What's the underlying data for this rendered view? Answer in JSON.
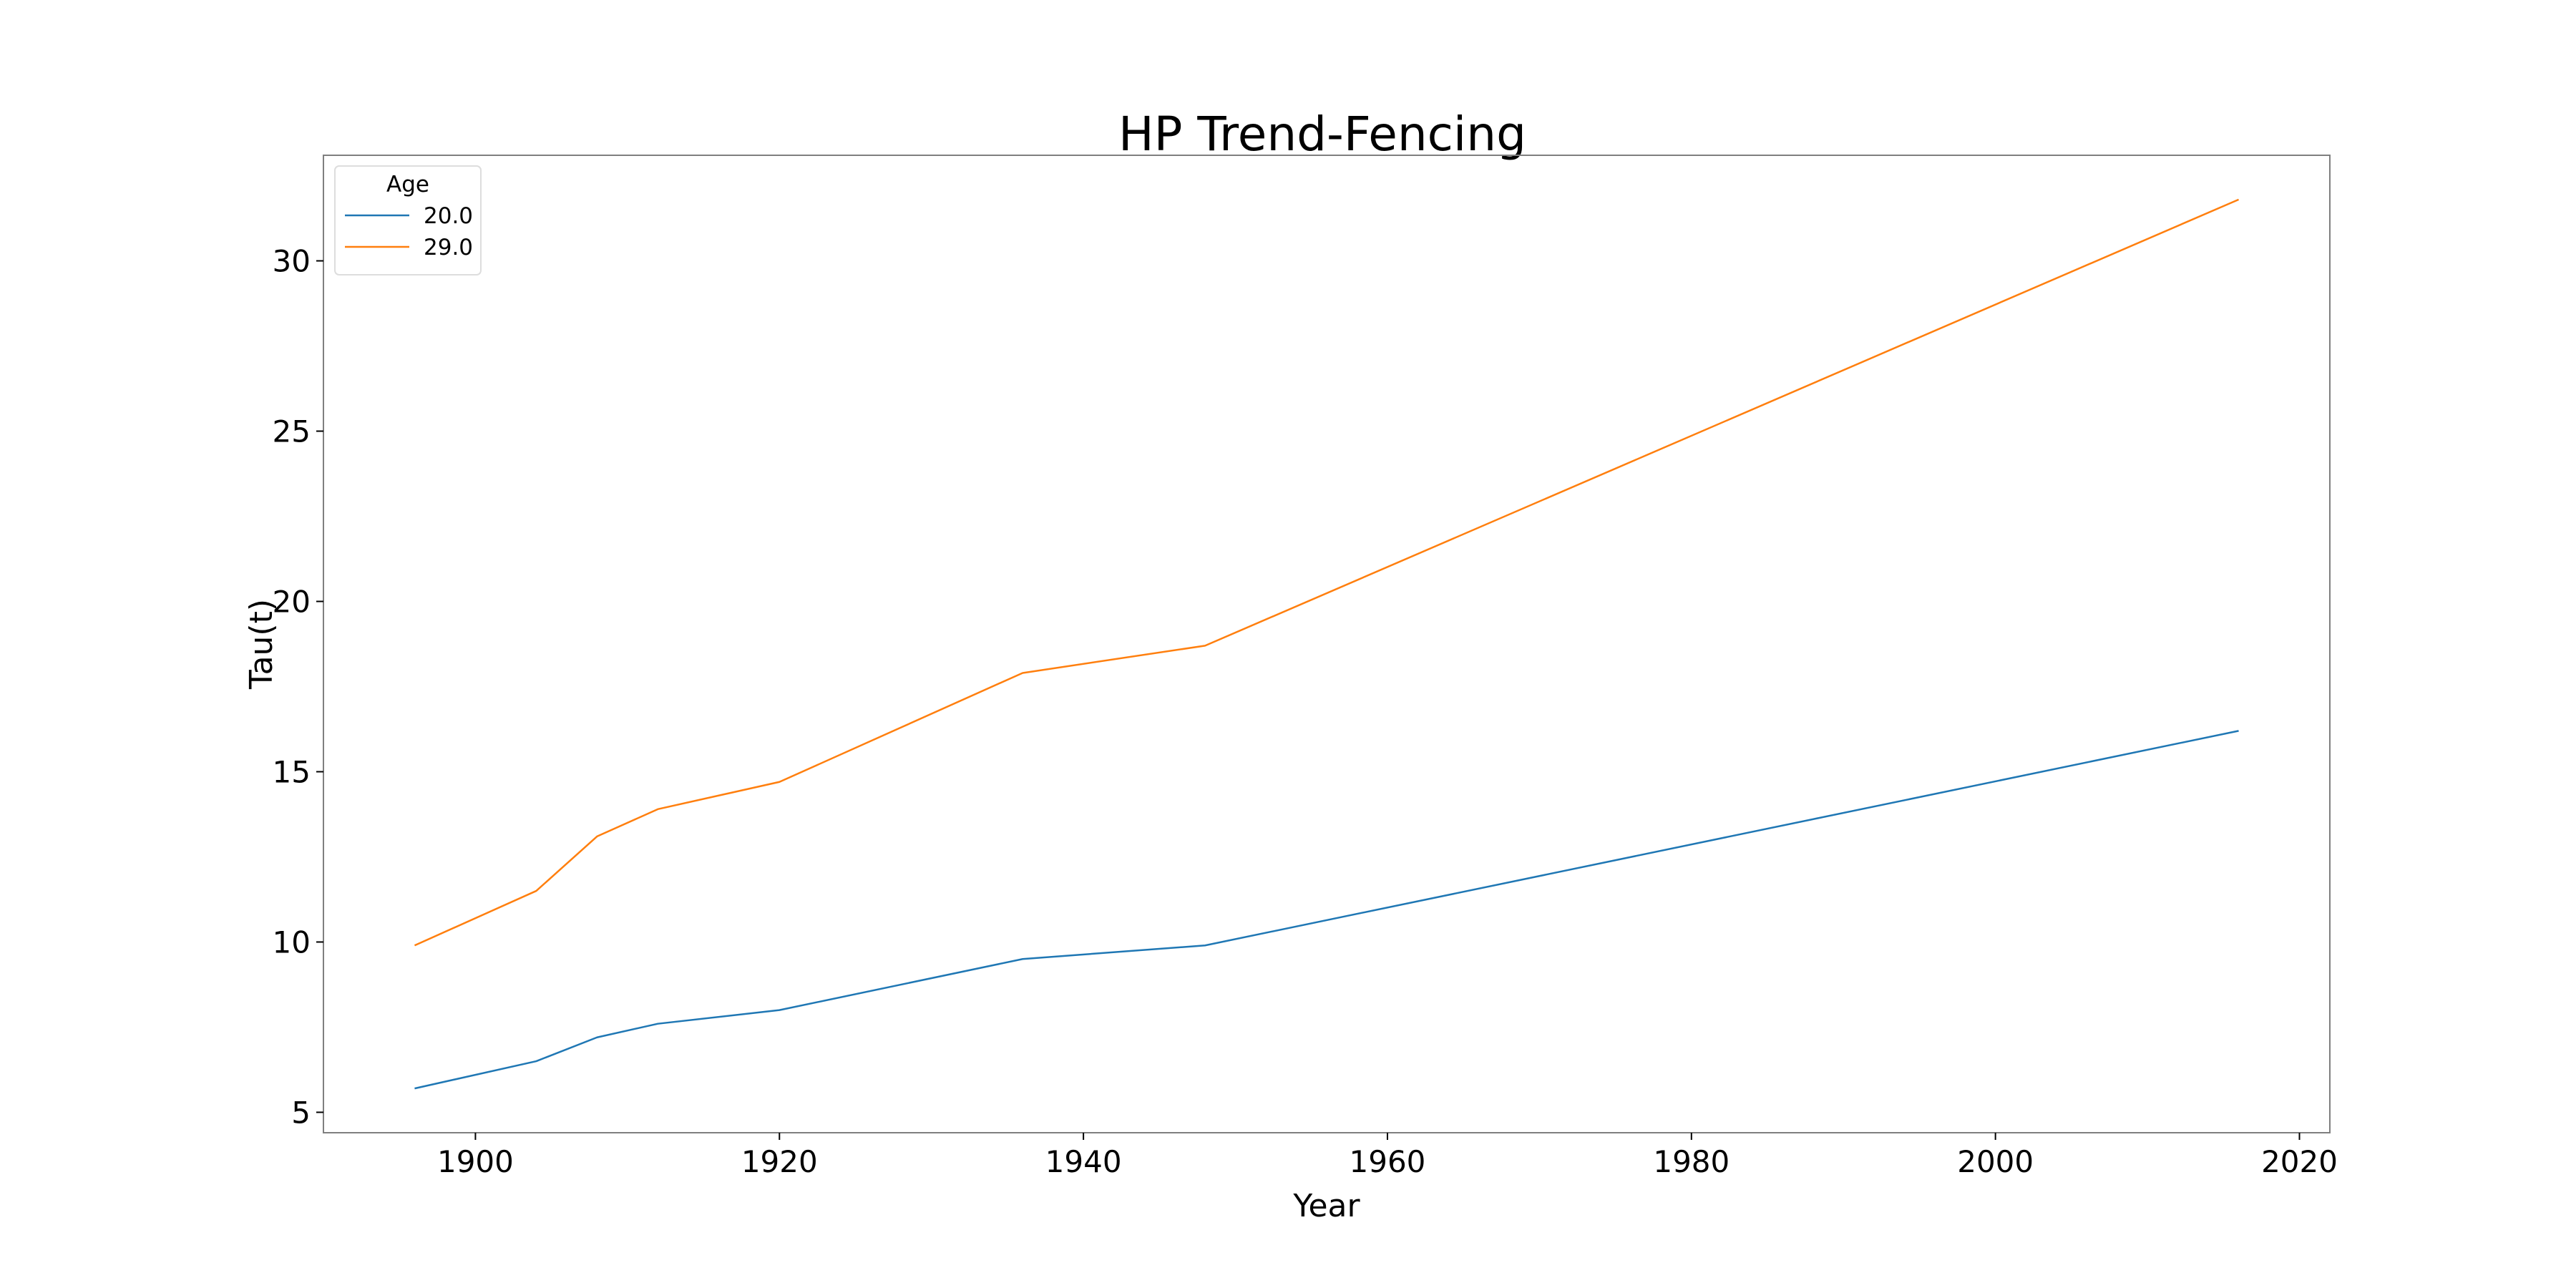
{
  "chart_data": {
    "type": "line",
    "title": "HP Trend-Fencing",
    "xlabel": "Year",
    "ylabel": "Tau(t)",
    "xlim": [
      1890,
      2022
    ],
    "ylim": [
      4.4,
      33.1
    ],
    "xticks": [
      1900,
      1920,
      1940,
      1960,
      1980,
      2000,
      2020
    ],
    "yticks": [
      5,
      10,
      15,
      20,
      25,
      30
    ],
    "grid": false,
    "legend": {
      "title": "Age",
      "placement": "top-left"
    },
    "series": [
      {
        "name": "20.0",
        "color": "#1f77b4",
        "x": [
          1896,
          1904,
          1908,
          1912,
          1920,
          1936,
          1948,
          2016
        ],
        "y": [
          5.7,
          6.5,
          7.2,
          7.6,
          8.0,
          9.5,
          9.9,
          16.2
        ]
      },
      {
        "name": "29.0",
        "color": "#ff7f0e",
        "x": [
          1896,
          1904,
          1908,
          1912,
          1920,
          1936,
          1948,
          2016
        ],
        "y": [
          9.9,
          11.5,
          13.1,
          13.9,
          14.7,
          17.9,
          18.7,
          31.8
        ]
      }
    ]
  }
}
